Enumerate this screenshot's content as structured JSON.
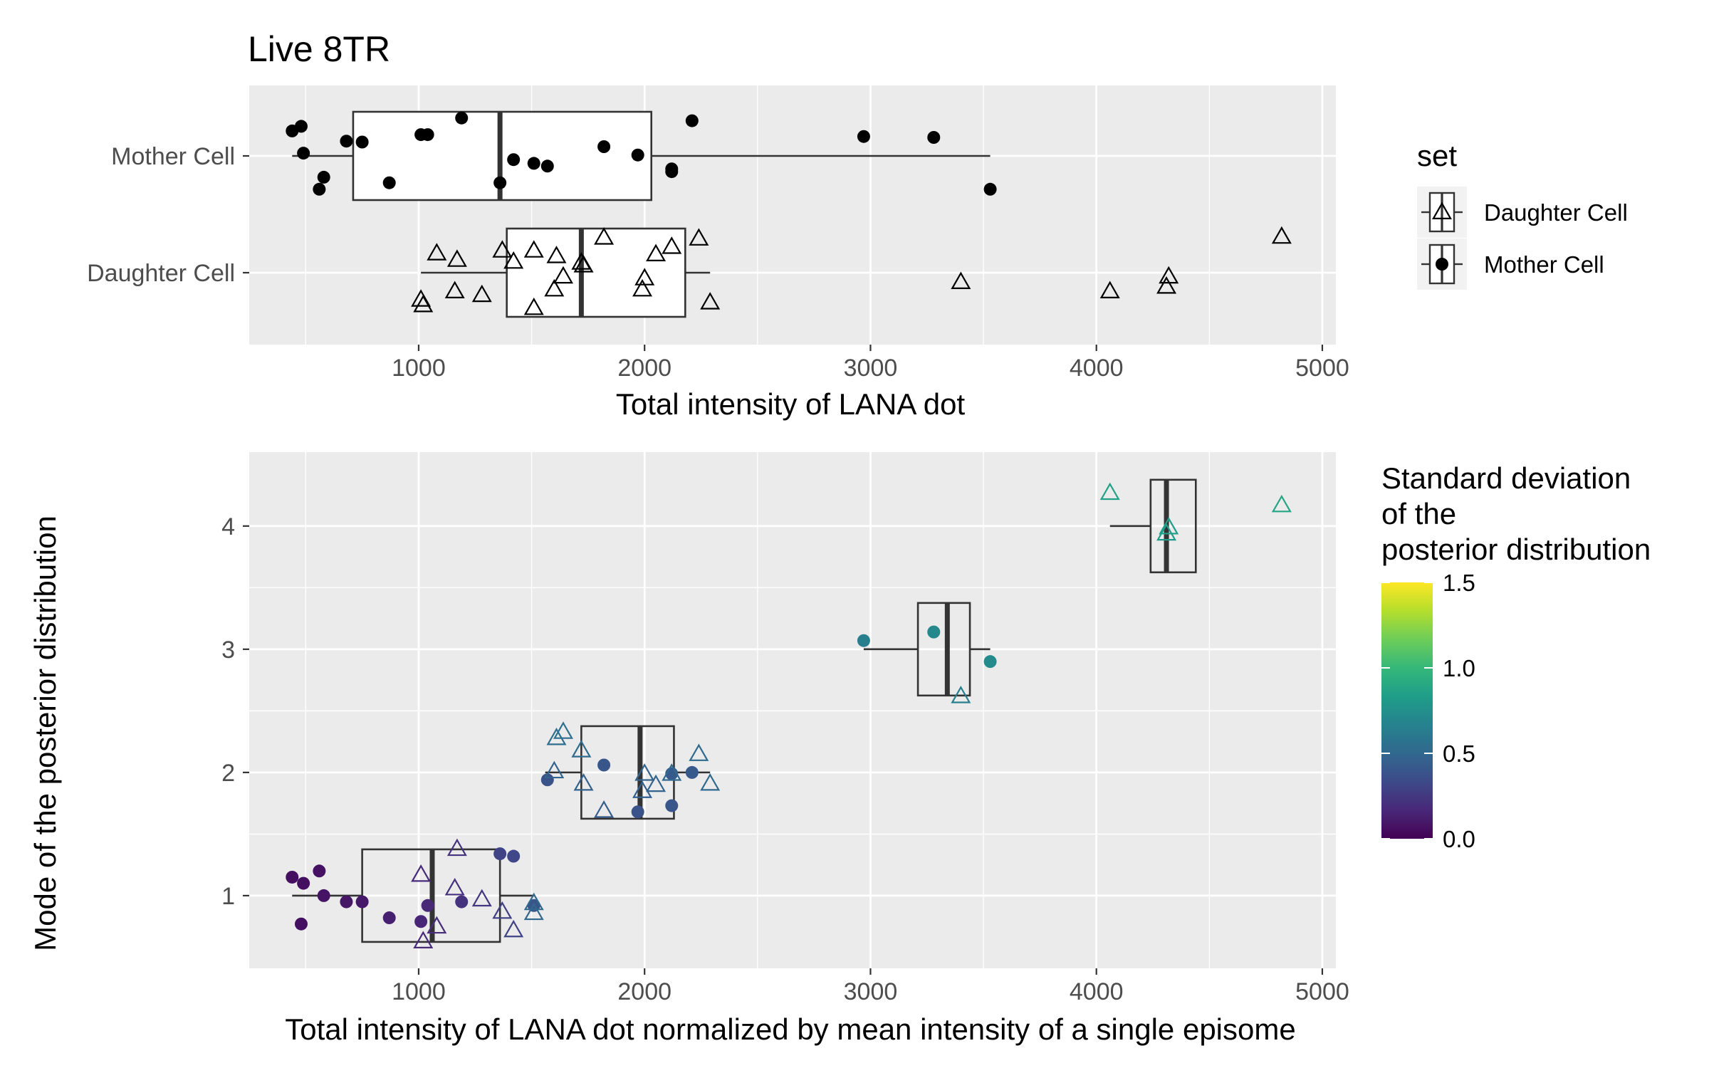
{
  "chart_data": [
    {
      "type": "boxplot+jitter",
      "orientation": "horizontal",
      "title": "Live 8TR",
      "xlabel": "Total intensity of LANA dot",
      "ylabel": "",
      "xlim": [
        250,
        5060
      ],
      "x_ticks": [
        1000,
        2000,
        3000,
        4000,
        5000
      ],
      "categories": [
        "Mother Cell",
        "Daughter Cell"
      ],
      "grid": true,
      "legend": {
        "title": "set",
        "position": "right",
        "entries": [
          {
            "label": "Daughter Cell",
            "shape": "open-triangle"
          },
          {
            "label": "Mother Cell",
            "shape": "filled-circle"
          }
        ]
      },
      "boxes": [
        {
          "category": "Mother Cell",
          "whisker_low": 440,
          "q1": 710,
          "median": 1360,
          "q3": 2030,
          "whisker_high": 3530
        },
        {
          "category": "Daughter Cell",
          "whisker_low": 1010,
          "q1": 1390,
          "median": 1720,
          "q3": 2180,
          "whisker_high": 2290
        }
      ],
      "series": [
        {
          "name": "Mother Cell",
          "shape": "filled-circle",
          "points": [
            {
              "x": 440,
              "jitter": 0.27
            },
            {
              "x": 480,
              "jitter": 0.32
            },
            {
              "x": 490,
              "jitter": 0.03
            },
            {
              "x": 560,
              "jitter": -0.36
            },
            {
              "x": 580,
              "jitter": -0.23
            },
            {
              "x": 680,
              "jitter": 0.16
            },
            {
              "x": 750,
              "jitter": 0.15
            },
            {
              "x": 870,
              "jitter": -0.29
            },
            {
              "x": 1010,
              "jitter": 0.23
            },
            {
              "x": 1040,
              "jitter": 0.23
            },
            {
              "x": 1190,
              "jitter": 0.41
            },
            {
              "x": 1360,
              "jitter": -0.29
            },
            {
              "x": 1420,
              "jitter": -0.04
            },
            {
              "x": 1510,
              "jitter": -0.08
            },
            {
              "x": 1570,
              "jitter": -0.11
            },
            {
              "x": 1820,
              "jitter": 0.1
            },
            {
              "x": 1970,
              "jitter": 0.01
            },
            {
              "x": 2120,
              "jitter": -0.14
            },
            {
              "x": 2120,
              "jitter": -0.17
            },
            {
              "x": 2210,
              "jitter": 0.38
            },
            {
              "x": 2970,
              "jitter": 0.21
            },
            {
              "x": 3280,
              "jitter": 0.2
            },
            {
              "x": 3530,
              "jitter": -0.36
            }
          ]
        },
        {
          "name": "Daughter Cell",
          "shape": "open-triangle",
          "points": [
            {
              "x": 1010,
              "jitter": -0.29
            },
            {
              "x": 1020,
              "jitter": -0.35
            },
            {
              "x": 1080,
              "jitter": 0.21
            },
            {
              "x": 1170,
              "jitter": 0.14
            },
            {
              "x": 1160,
              "jitter": -0.2
            },
            {
              "x": 1280,
              "jitter": -0.24
            },
            {
              "x": 1370,
              "jitter": 0.24
            },
            {
              "x": 1420,
              "jitter": 0.12
            },
            {
              "x": 1510,
              "jitter": 0.24
            },
            {
              "x": 1510,
              "jitter": -0.38
            },
            {
              "x": 1610,
              "jitter": 0.18
            },
            {
              "x": 1600,
              "jitter": -0.18
            },
            {
              "x": 1640,
              "jitter": -0.04
            },
            {
              "x": 1720,
              "jitter": 0.11
            },
            {
              "x": 1730,
              "jitter": 0.08
            },
            {
              "x": 1820,
              "jitter": 0.38
            },
            {
              "x": 1990,
              "jitter": -0.18
            },
            {
              "x": 2000,
              "jitter": -0.06
            },
            {
              "x": 2050,
              "jitter": 0.2
            },
            {
              "x": 2120,
              "jitter": 0.28
            },
            {
              "x": 2240,
              "jitter": 0.37
            },
            {
              "x": 2290,
              "jitter": -0.32
            },
            {
              "x": 3400,
              "jitter": -0.1
            },
            {
              "x": 4060,
              "jitter": -0.2
            },
            {
              "x": 4310,
              "jitter": -0.15
            },
            {
              "x": 4320,
              "jitter": -0.04
            },
            {
              "x": 4820,
              "jitter": 0.39
            }
          ]
        }
      ]
    },
    {
      "type": "boxplot+scatter",
      "orientation": "horizontal",
      "xlabel": "Total intensity of LANA dot normalized by mean intensity of a single episome",
      "ylabel": "Mode of the posterior distribution",
      "xlim": [
        250,
        5060
      ],
      "ylim": [
        0.41,
        4.6
      ],
      "x_ticks": [
        1000,
        2000,
        3000,
        4000,
        5000
      ],
      "y_ticks": [
        1,
        2,
        3,
        4
      ],
      "grid": true,
      "color_scale": {
        "title_lines": [
          "Standard deviation",
          "of the",
          "posterior distribution"
        ],
        "palette": "viridis",
        "limits": [
          0.0,
          1.5
        ],
        "ticks": [
          "0.0",
          "0.5",
          "1.0",
          "1.5"
        ],
        "colors": [
          "#440154",
          "#482878",
          "#3E4A89",
          "#31688E",
          "#26828E",
          "#1F9E89",
          "#35B779",
          "#6DCD59",
          "#B4DE2C",
          "#FDE725"
        ],
        "position": "right"
      },
      "boxes": [
        {
          "y": 1,
          "whisker_low": 440,
          "q1": 750,
          "median": 1060,
          "q3": 1360,
          "whisker_high": 1510
        },
        {
          "y": 2,
          "whisker_low": 1560,
          "q1": 1720,
          "median": 1980,
          "q3": 2130,
          "whisker_high": 2290
        },
        {
          "y": 3,
          "whisker_low": 2970,
          "q1": 3210,
          "median": 3340,
          "q3": 3440,
          "whisker_high": 3530
        },
        {
          "y": 4,
          "whisker_low": 4060,
          "q1": 4240,
          "median": 4310,
          "q3": 4440,
          "whisker_high": 4440
        }
      ],
      "series": [
        {
          "name": "Mother Cell",
          "shape": "filled-circle",
          "points": [
            {
              "x": 440,
              "y": 1.15,
              "sd": 0.06
            },
            {
              "x": 480,
              "y": 0.77,
              "sd": 0.06
            },
            {
              "x": 490,
              "y": 1.1,
              "sd": 0.06
            },
            {
              "x": 560,
              "y": 1.2,
              "sd": 0.07
            },
            {
              "x": 580,
              "y": 1.0,
              "sd": 0.08
            },
            {
              "x": 680,
              "y": 0.95,
              "sd": 0.09
            },
            {
              "x": 750,
              "y": 0.95,
              "sd": 0.1
            },
            {
              "x": 870,
              "y": 0.82,
              "sd": 0.13
            },
            {
              "x": 1010,
              "y": 0.79,
              "sd": 0.16
            },
            {
              "x": 1040,
              "y": 0.92,
              "sd": 0.17
            },
            {
              "x": 1190,
              "y": 0.95,
              "sd": 0.22
            },
            {
              "x": 1360,
              "y": 1.34,
              "sd": 0.3
            },
            {
              "x": 1420,
              "y": 1.32,
              "sd": 0.32
            },
            {
              "x": 1510,
              "y": 0.92,
              "sd": 0.4
            },
            {
              "x": 1570,
              "y": 1.94,
              "sd": 0.38
            },
            {
              "x": 1820,
              "y": 2.06,
              "sd": 0.4
            },
            {
              "x": 1970,
              "y": 1.68,
              "sd": 0.38
            },
            {
              "x": 2120,
              "y": 1.73,
              "sd": 0.4
            },
            {
              "x": 2120,
              "y": 1.99,
              "sd": 0.42
            },
            {
              "x": 2210,
              "y": 2.0,
              "sd": 0.42
            },
            {
              "x": 2970,
              "y": 3.07,
              "sd": 0.65
            },
            {
              "x": 3280,
              "y": 3.14,
              "sd": 0.7
            },
            {
              "x": 3530,
              "y": 2.9,
              "sd": 0.72
            }
          ]
        },
        {
          "name": "Daughter Cell",
          "shape": "open-triangle",
          "points": [
            {
              "x": 1010,
              "y": 1.17,
              "sd": 0.18
            },
            {
              "x": 1020,
              "y": 0.63,
              "sd": 0.18
            },
            {
              "x": 1080,
              "y": 0.75,
              "sd": 0.19
            },
            {
              "x": 1170,
              "y": 1.38,
              "sd": 0.22
            },
            {
              "x": 1160,
              "y": 1.06,
              "sd": 0.21
            },
            {
              "x": 1280,
              "y": 0.97,
              "sd": 0.24
            },
            {
              "x": 1370,
              "y": 0.87,
              "sd": 0.28
            },
            {
              "x": 1420,
              "y": 0.72,
              "sd": 0.3
            },
            {
              "x": 1510,
              "y": 0.86,
              "sd": 0.5
            },
            {
              "x": 1510,
              "y": 0.94,
              "sd": 0.5
            },
            {
              "x": 1610,
              "y": 2.28,
              "sd": 0.54
            },
            {
              "x": 1600,
              "y": 2.01,
              "sd": 0.48
            },
            {
              "x": 1640,
              "y": 2.33,
              "sd": 0.55
            },
            {
              "x": 1720,
              "y": 2.18,
              "sd": 0.52
            },
            {
              "x": 1730,
              "y": 1.91,
              "sd": 0.46
            },
            {
              "x": 1820,
              "y": 1.69,
              "sd": 0.44
            },
            {
              "x": 1990,
              "y": 1.85,
              "sd": 0.45
            },
            {
              "x": 2000,
              "y": 1.99,
              "sd": 0.48
            },
            {
              "x": 2050,
              "y": 1.9,
              "sd": 0.48
            },
            {
              "x": 2120,
              "y": 1.99,
              "sd": 0.5
            },
            {
              "x": 2240,
              "y": 2.15,
              "sd": 0.52
            },
            {
              "x": 2290,
              "y": 1.91,
              "sd": 0.5
            },
            {
              "x": 3400,
              "y": 2.62,
              "sd": 0.65
            },
            {
              "x": 4060,
              "y": 4.27,
              "sd": 0.85
            },
            {
              "x": 4310,
              "y": 3.94,
              "sd": 0.82
            },
            {
              "x": 4320,
              "y": 3.99,
              "sd": 0.84
            },
            {
              "x": 4820,
              "y": 4.17,
              "sd": 0.88
            }
          ]
        }
      ]
    }
  ]
}
